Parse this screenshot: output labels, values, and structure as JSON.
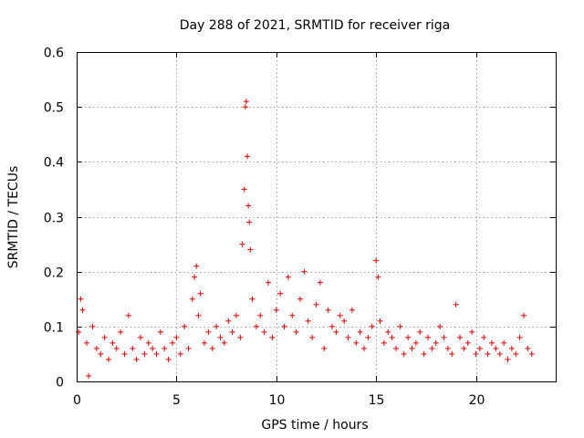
{
  "chart_data": {
    "type": "scatter",
    "title": "Day 288 of 2021, SRMTID for receiver riga",
    "xlabel": "GPS time / hours",
    "ylabel": "SRMTID / TECUs",
    "xlim": [
      0,
      24
    ],
    "ylim": [
      0,
      0.6
    ],
    "xticks": [
      0,
      5,
      10,
      15,
      20
    ],
    "yticks": [
      0,
      0.1,
      0.2,
      0.3,
      0.4,
      0.5,
      0.6
    ],
    "xtick_labels": [
      "0",
      "5",
      "10",
      "15",
      "20"
    ],
    "ytick_labels": [
      "0",
      "0.1",
      "0.2",
      "0.3",
      "0.4",
      "0.5",
      "0.6"
    ],
    "grid": true,
    "marker": "+",
    "series": [
      {
        "name": "SRMTID",
        "color": "#e00000",
        "x": [
          0.1,
          0.2,
          0.3,
          0.5,
          0.6,
          0.8,
          1.0,
          1.2,
          1.4,
          1.6,
          1.8,
          2.0,
          2.2,
          2.4,
          2.6,
          2.8,
          3.0,
          3.2,
          3.4,
          3.6,
          3.8,
          4.0,
          4.2,
          4.4,
          4.6,
          4.8,
          5.0,
          5.2,
          5.4,
          5.6,
          5.8,
          5.9,
          6.0,
          6.1,
          6.2,
          6.4,
          6.6,
          6.8,
          7.0,
          7.2,
          7.4,
          7.6,
          7.8,
          8.0,
          8.2,
          8.3,
          8.4,
          8.45,
          8.5,
          8.55,
          8.6,
          8.65,
          8.7,
          8.8,
          9.0,
          9.2,
          9.4,
          9.6,
          9.8,
          10.0,
          10.2,
          10.4,
          10.6,
          10.8,
          11.0,
          11.2,
          11.4,
          11.6,
          11.8,
          12.0,
          12.2,
          12.4,
          12.6,
          12.8,
          13.0,
          13.2,
          13.4,
          13.6,
          13.8,
          14.0,
          14.2,
          14.4,
          14.6,
          14.8,
          15.0,
          15.1,
          15.2,
          15.4,
          15.6,
          15.8,
          16.0,
          16.2,
          16.4,
          16.6,
          16.8,
          17.0,
          17.2,
          17.4,
          17.6,
          17.8,
          18.0,
          18.2,
          18.4,
          18.6,
          18.8,
          19.0,
          19.2,
          19.4,
          19.6,
          19.8,
          20.0,
          20.2,
          20.4,
          20.6,
          20.8,
          21.0,
          21.2,
          21.4,
          21.6,
          21.8,
          22.0,
          22.2,
          22.4,
          22.6,
          22.8
        ],
        "y": [
          0.09,
          0.15,
          0.13,
          0.07,
          0.01,
          0.1,
          0.06,
          0.05,
          0.08,
          0.04,
          0.07,
          0.06,
          0.09,
          0.05,
          0.12,
          0.06,
          0.04,
          0.08,
          0.05,
          0.07,
          0.06,
          0.05,
          0.09,
          0.06,
          0.04,
          0.07,
          0.08,
          0.05,
          0.1,
          0.06,
          0.15,
          0.19,
          0.21,
          0.12,
          0.16,
          0.07,
          0.09,
          0.06,
          0.1,
          0.08,
          0.07,
          0.11,
          0.09,
          0.12,
          0.08,
          0.25,
          0.35,
          0.5,
          0.51,
          0.41,
          0.32,
          0.29,
          0.24,
          0.15,
          0.1,
          0.12,
          0.09,
          0.18,
          0.08,
          0.13,
          0.16,
          0.1,
          0.19,
          0.12,
          0.09,
          0.15,
          0.2,
          0.11,
          0.08,
          0.14,
          0.18,
          0.06,
          0.13,
          0.1,
          0.09,
          0.12,
          0.11,
          0.08,
          0.13,
          0.07,
          0.09,
          0.06,
          0.08,
          0.1,
          0.22,
          0.19,
          0.11,
          0.07,
          0.09,
          0.08,
          0.06,
          0.1,
          0.05,
          0.08,
          0.06,
          0.07,
          0.09,
          0.05,
          0.08,
          0.06,
          0.07,
          0.1,
          0.08,
          0.06,
          0.05,
          0.14,
          0.08,
          0.06,
          0.07,
          0.09,
          0.05,
          0.06,
          0.08,
          0.05,
          0.07,
          0.06,
          0.05,
          0.07,
          0.04,
          0.06,
          0.05,
          0.08,
          0.12,
          0.06,
          0.05
        ]
      }
    ],
    "annotations": []
  }
}
